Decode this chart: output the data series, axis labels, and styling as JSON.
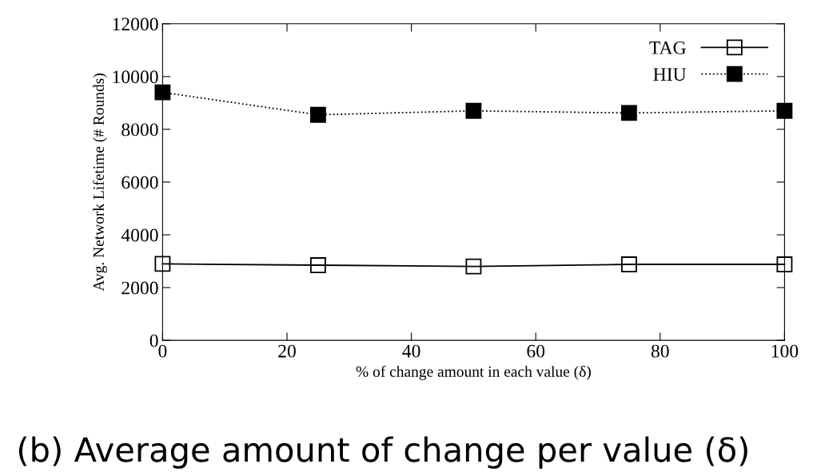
{
  "chart_data": {
    "type": "line",
    "xlabel": "% of change amount in each value (δ)",
    "ylabel": "Avg. Network Lifetime (# Rounds)",
    "x": [
      0,
      25,
      50,
      75,
      100
    ],
    "series": [
      {
        "name": "TAG",
        "color": "#000000",
        "values": [
          2900,
          2850,
          2800,
          2880,
          2880
        ],
        "marker": "square",
        "line_style": "solid"
      },
      {
        "name": "HIU",
        "color": "#000000",
        "values": [
          9400,
          8550,
          8700,
          8620,
          8700
        ],
        "marker": "square",
        "line_style": "dotted"
      }
    ],
    "xlim": [
      0,
      100
    ],
    "xticks": [
      0,
      20,
      40,
      60,
      80,
      100
    ],
    "ylim": [
      0,
      12000
    ],
    "yticks": [
      0,
      2000,
      4000,
      6000,
      8000,
      10000,
      12000
    ],
    "grid": false,
    "legend": "top right",
    "annotations": [
      "(b) Average amount of change per value (δ)"
    ]
  }
}
